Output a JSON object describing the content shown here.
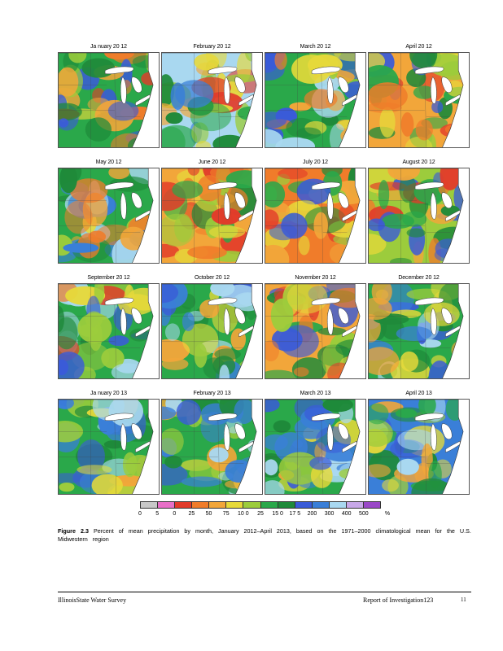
{
  "figure": {
    "panels": [
      {
        "title": "Ja nuary    20 12",
        "palette": [
          "#2aa84a",
          "#9ccc3c",
          "#e6d93a",
          "#f07c2a",
          "#e23b2a",
          "#1f8a3a",
          "#3a5bd8",
          "#f2a63a"
        ]
      },
      {
        "title": "February    20 12",
        "palette": [
          "#a9d8f0",
          "#3a7fd8",
          "#9ccc3c",
          "#e6d93a",
          "#2aa84a",
          "#f2a63a",
          "#1f8a3a",
          "#e23b2a"
        ]
      },
      {
        "title": "March    20 12",
        "palette": [
          "#2aa84a",
          "#3a5bd8",
          "#9ccc3c",
          "#e6d93a",
          "#1f8a3a",
          "#f07c2a",
          "#a9d8f0",
          "#f2a63a"
        ]
      },
      {
        "title": "April    20 12",
        "palette": [
          "#f2a63a",
          "#2aa84a",
          "#e6d93a",
          "#f07c2a",
          "#9ccc3c",
          "#e23b2a",
          "#1f8a3a",
          "#3a5bd8"
        ]
      },
      {
        "title": "May    20 12",
        "palette": [
          "#2aa84a",
          "#a9d8f0",
          "#3a7fd8",
          "#9ccc3c",
          "#e6d93a",
          "#1f8a3a",
          "#f2a63a",
          "#f07c2a"
        ]
      },
      {
        "title": "June    20 12",
        "palette": [
          "#f2a63a",
          "#2aa84a",
          "#e6d93a",
          "#f07c2a",
          "#9ccc3c",
          "#e23b2a",
          "#1f8a3a",
          "#3a5bd8"
        ]
      },
      {
        "title": "July    20 12",
        "palette": [
          "#f07c2a",
          "#e23b2a",
          "#9ccc3c",
          "#e6d93a",
          "#2aa84a",
          "#f2a63a",
          "#3a5bd8",
          "#1f8a3a"
        ]
      },
      {
        "title": "August    20 12",
        "palette": [
          "#9ccc3c",
          "#2aa84a",
          "#e6d93a",
          "#f2a63a",
          "#f07c2a",
          "#1f8a3a",
          "#e23b2a",
          "#3a5bd8"
        ]
      },
      {
        "title": "September    20 12",
        "palette": [
          "#2aa84a",
          "#e23b2a",
          "#3a5bd8",
          "#a9d8f0",
          "#9ccc3c",
          "#1f8a3a",
          "#e6d93a",
          "#f07c2a"
        ]
      },
      {
        "title": "October    20 12",
        "palette": [
          "#2aa84a",
          "#1f8a3a",
          "#3a5bd8",
          "#9ccc3c",
          "#a9d8f0",
          "#e6d93a",
          "#f2a63a",
          "#3a7fd8"
        ]
      },
      {
        "title": "November    20 12",
        "palette": [
          "#f2a63a",
          "#e6d93a",
          "#f07c2a",
          "#9ccc3c",
          "#2aa84a",
          "#e23b2a",
          "#1f8a3a",
          "#3a5bd8"
        ]
      },
      {
        "title": "December    20 12",
        "palette": [
          "#2aa84a",
          "#1f8a3a",
          "#9ccc3c",
          "#3a5bd8",
          "#a9d8f0",
          "#e6d93a",
          "#f2a63a",
          "#3a7fd8"
        ]
      },
      {
        "title": "Ja nuary    20 13",
        "palette": [
          "#2aa84a",
          "#3a5bd8",
          "#1f8a3a",
          "#a9d8f0",
          "#9ccc3c",
          "#3a7fd8",
          "#e6d93a",
          "#f2a63a"
        ]
      },
      {
        "title": "February    20 13",
        "palette": [
          "#2aa84a",
          "#3a5bd8",
          "#a9d8f0",
          "#1f8a3a",
          "#9ccc3c",
          "#3a7fd8",
          "#e6d93a",
          "#f2a63a"
        ]
      },
      {
        "title": "March    20 13",
        "palette": [
          "#2aa84a",
          "#1f8a3a",
          "#9ccc3c",
          "#3a5bd8",
          "#e6d93a",
          "#f2a63a",
          "#a9d8f0",
          "#3a7fd8"
        ]
      },
      {
        "title": "April    20 13",
        "palette": [
          "#3a7fd8",
          "#a9d8f0",
          "#2aa84a",
          "#3a5bd8",
          "#1f8a3a",
          "#9ccc3c",
          "#e6d93a",
          "#f2a63a"
        ]
      }
    ],
    "legend": {
      "colors": [
        "#c8c8c8",
        "#e870c8",
        "#e23b2a",
        "#f07c2a",
        "#f2a63a",
        "#e6d93a",
        "#9ccc3c",
        "#2aa84a",
        "#1f8a3a",
        "#3a5bd8",
        "#3a7fd8",
        "#a9d8f0",
        "#c8a8e8",
        "#9a48c8"
      ],
      "labels": [
        "0",
        "5",
        "0",
        "25",
        "50",
        "75",
        "10 0",
        "25",
        "15 0",
        "17 5",
        "200",
        "300",
        "400",
        "500",
        "%"
      ]
    },
    "caption": {
      "label": "Figure   2.3",
      "text": " Percent   of   mean   precipitation    by month,  January   2012–April   2013,  based  on the  1971–2000   climatological   mean  for the  U.S.  Midwestern   region"
    }
  },
  "footer": {
    "left": "IllinoisState Water Survey",
    "right": "Report of Investigation123",
    "page": "11"
  }
}
